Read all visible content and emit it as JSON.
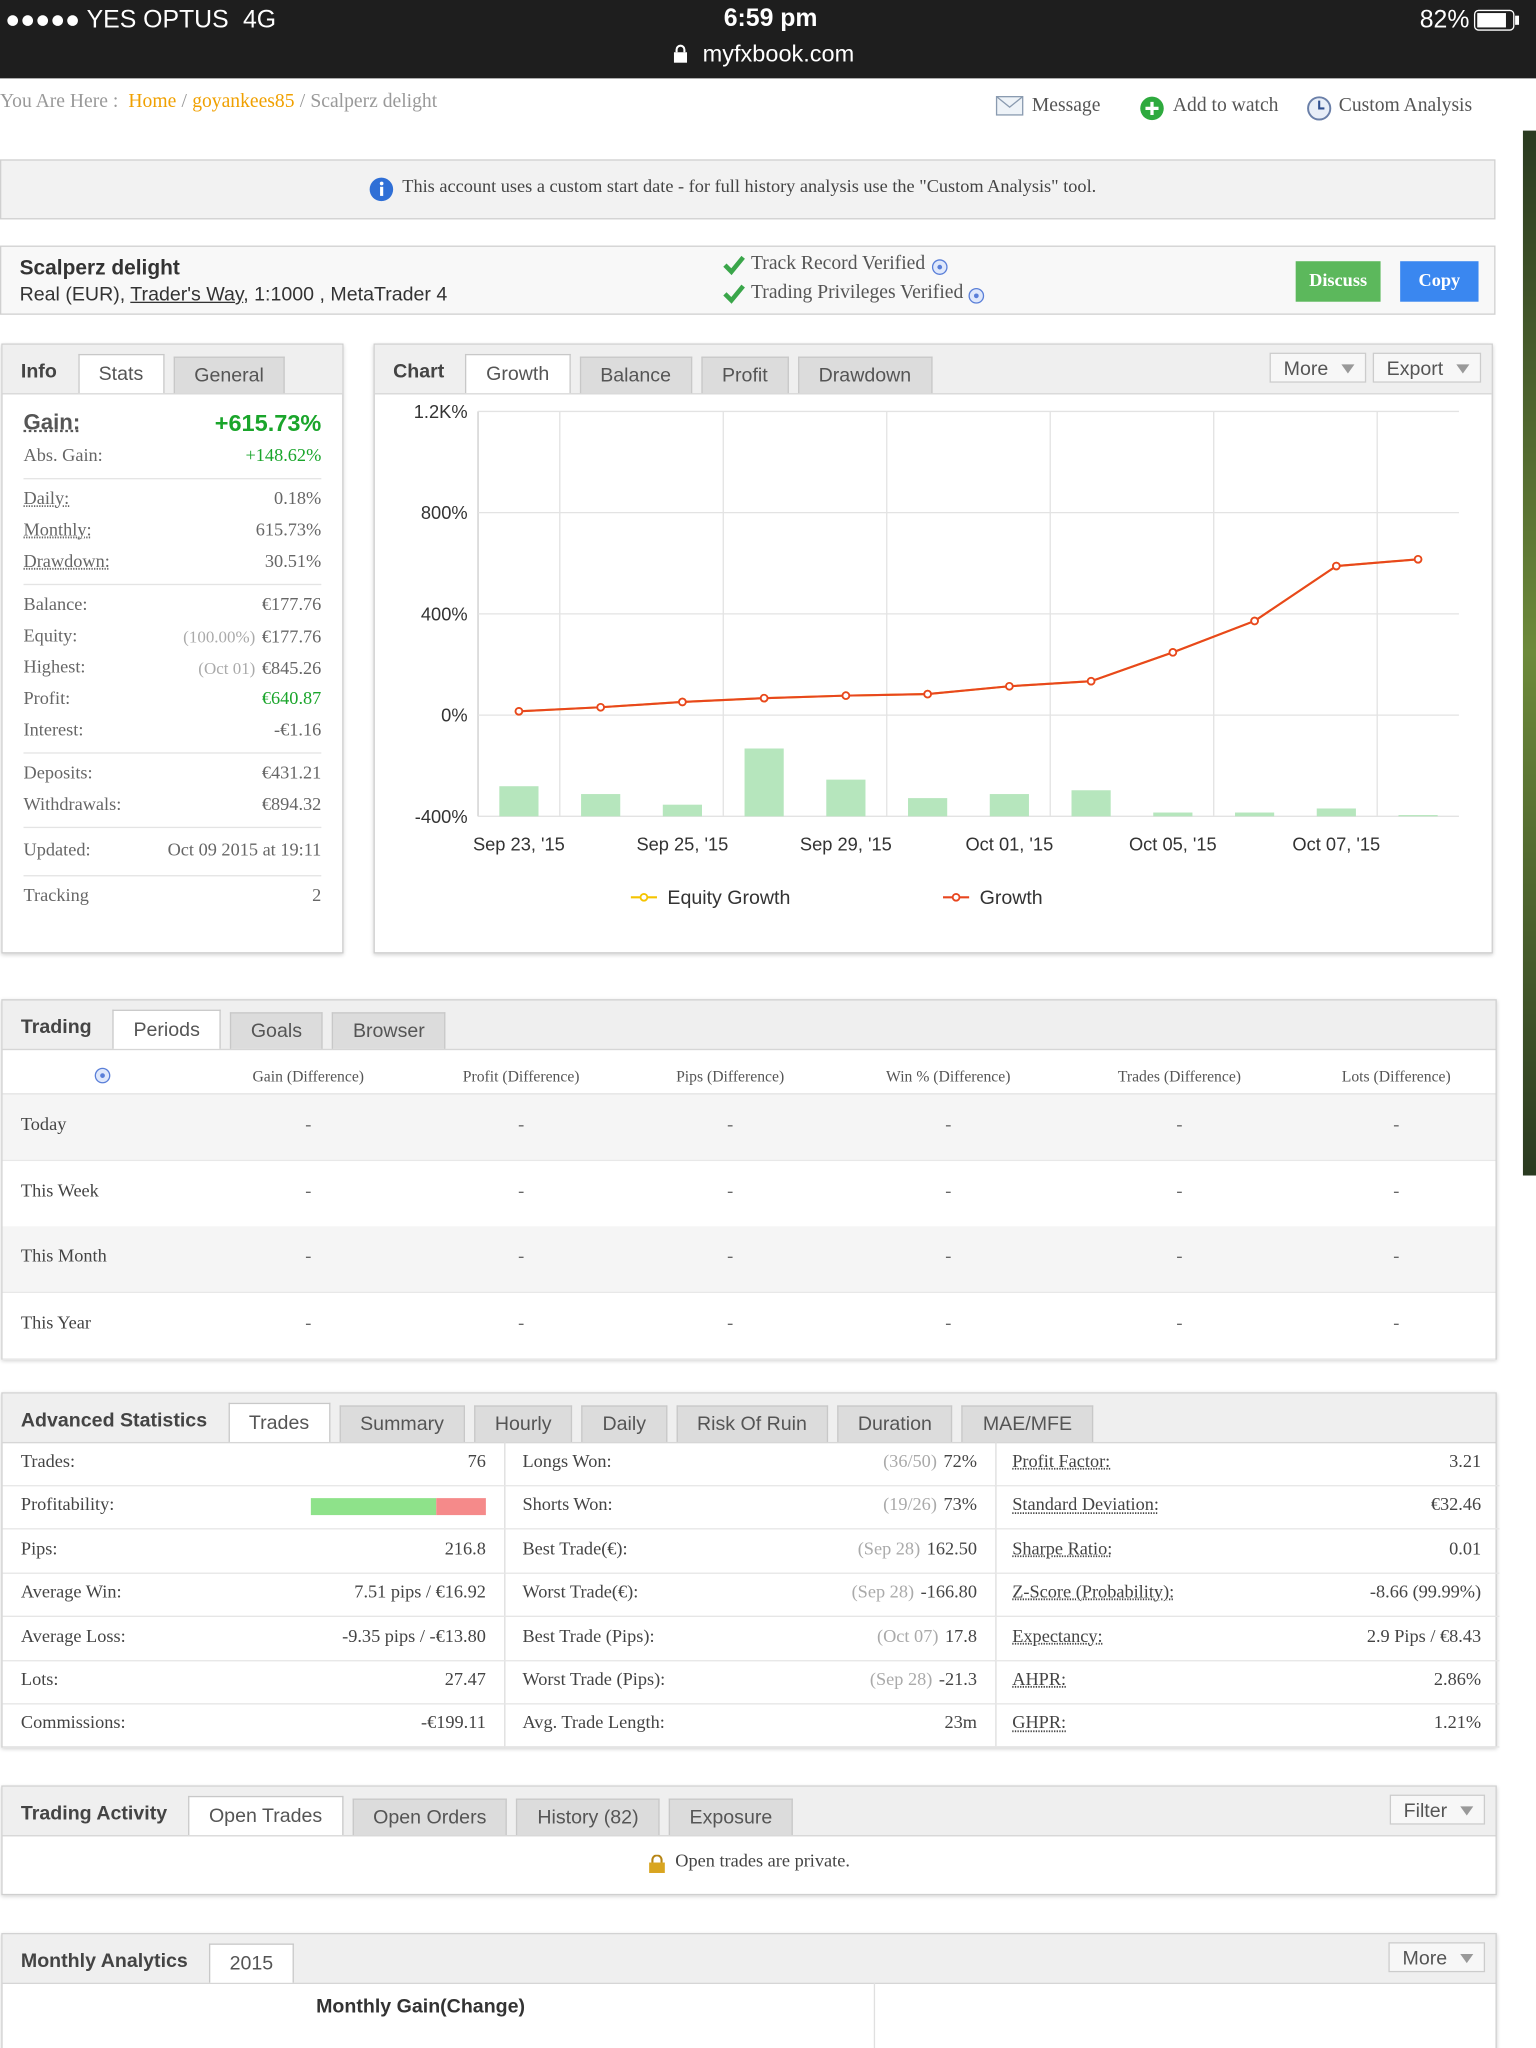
{
  "status_bar": {
    "carrier": "●●●●● YES OPTUS",
    "network": "4G",
    "time": "6:59 pm",
    "url": "myfxbook.com",
    "battery": "82%"
  },
  "breadcrumb": {
    "prefix": "You Are Here :",
    "separator": "/",
    "items": [
      "Home",
      "goyankees85",
      "Scalperz delight"
    ]
  },
  "actions": [
    "Message",
    "Add to watch",
    "Custom Analysis"
  ],
  "notice": "This account uses a custom start date - for full history analysis use the \"Custom Analysis\" tool.",
  "account": {
    "name": "Scalperz delight",
    "type": "Real (EUR),",
    "broker": "Trader's Way",
    "details": ", 1:1000 , MetaTrader 4",
    "verified": [
      "Track Record Verified",
      "Trading Privileges Verified"
    ],
    "buttons": [
      "Discuss",
      "Copy"
    ]
  },
  "info": {
    "tabs": [
      "Info",
      "Stats",
      "General"
    ],
    "gain": {
      "label": "Gain:",
      "value": "+615.73%"
    },
    "groups": [
      [
        {
          "label": "Abs. Gain:",
          "value": "+148.62%",
          "color": "#1aa52b"
        }
      ],
      [
        {
          "label": "Daily:",
          "value": "0.18%"
        },
        {
          "label": "Monthly:",
          "value": "615.73%"
        },
        {
          "label": "Drawdown:",
          "value": "30.51%"
        }
      ],
      [
        {
          "label": "Balance:",
          "value": "€177.76"
        },
        {
          "label": "Equity:",
          "note": "(100.00%)",
          "value": "€177.76"
        },
        {
          "label": "Highest:",
          "note": "(Oct 01)",
          "value": "€845.26"
        },
        {
          "label": "Profit:",
          "value": "€640.87",
          "color": "#1aa52b"
        },
        {
          "label": "Interest:",
          "value": "-€1.16"
        }
      ],
      [
        {
          "label": "Deposits:",
          "value": "€431.21"
        },
        {
          "label": "Withdrawals:",
          "value": "€894.32"
        }
      ],
      [
        {
          "label": "Updated:",
          "value": "Oct 09 2015 at 19:11"
        }
      ],
      [
        {
          "label": "Tracking",
          "value": "2"
        }
      ]
    ]
  },
  "chart_panel": {
    "tabs": [
      "Chart",
      "Growth",
      "Balance",
      "Profit",
      "Drawdown"
    ],
    "menus": [
      "More",
      "Export"
    ]
  },
  "chart_data": {
    "type": "line",
    "categories": [
      "Sep 23, '15",
      null,
      "Sep 25, '15",
      null,
      "Sep 29, '15",
      null,
      "Oct 01, '15",
      null,
      "Oct 05, '15",
      null,
      "Oct 07, '15",
      null
    ],
    "series": [
      {
        "name": "Equity Growth",
        "color": "#f5c400",
        "values": [
          15,
          31,
          52,
          67,
          77,
          83,
          114,
          134,
          248,
          372,
          589,
          615.73
        ]
      },
      {
        "name": "Growth",
        "color": "#e8461f",
        "values": [
          15,
          31,
          52,
          67,
          77,
          83,
          114,
          134,
          248,
          372,
          589,
          615.73
        ]
      }
    ],
    "bars": {
      "color": "#b6e6bd",
      "values": [
        -281,
        -312,
        -354,
        -132,
        -255,
        -328,
        -312,
        -297,
        -385,
        -385,
        -369,
        -395
      ]
    },
    "ylim": [
      -400,
      1200
    ],
    "yticks": [
      {
        "value": -400,
        "label": "-400%"
      },
      {
        "value": 0,
        "label": "0%"
      },
      {
        "value": 400,
        "label": "400%"
      },
      {
        "value": 800,
        "label": "800%"
      },
      {
        "value": 1200,
        "label": "1.2K%"
      }
    ],
    "grid": true
  },
  "trading": {
    "tabs": [
      "Trading",
      "Periods",
      "Goals",
      "Browser"
    ],
    "columns": [
      "Gain (Difference)",
      "Profit (Difference)",
      "Pips (Difference)",
      "Win % (Difference)",
      "Trades (Difference)",
      "Lots (Difference)"
    ],
    "rows": [
      [
        "Today",
        "-",
        "-",
        "-",
        "-",
        "-",
        "-"
      ],
      [
        "This Week",
        "-",
        "-",
        "-",
        "-",
        "-",
        "-"
      ],
      [
        "This Month",
        "-",
        "-",
        "-",
        "-",
        "-",
        "-"
      ],
      [
        "This Year",
        "-",
        "-",
        "-",
        "-",
        "-",
        "-"
      ]
    ]
  },
  "advanced": {
    "tabs": [
      "Advanced Statistics",
      "Trades",
      "Summary",
      "Hourly",
      "Daily",
      "Risk Of Ruin",
      "Duration",
      "MAE/MFE"
    ],
    "columns": [
      [
        {
          "label": "Trades:",
          "value": "76"
        },
        {
          "label": "Profitability:",
          "bar": {
            "colors": [
              "#8ee28a",
              "#f58a8a"
            ]
          }
        },
        {
          "label": "Pips:",
          "value": "216.8"
        },
        {
          "label": "Average Win:",
          "value": "7.51 pips / €16.92"
        },
        {
          "label": "Average Loss:",
          "value": "-9.35 pips / -€13.80"
        },
        {
          "label": "Lots:",
          "value": "27.47"
        },
        {
          "label": "Commissions:",
          "value": "-€199.11"
        }
      ],
      [
        {
          "label": "Longs Won:",
          "note": "(36/50)",
          "value": "72%"
        },
        {
          "label": "Shorts Won:",
          "note": "(19/26)",
          "value": "73%"
        },
        {
          "label": "Best Trade(€):",
          "note": "(Sep 28)",
          "value": "162.50"
        },
        {
          "label": "Worst Trade(€):",
          "note": "(Sep 28)",
          "value": "-166.80"
        },
        {
          "label": "Best Trade (Pips):",
          "note": "(Oct 07)",
          "value": "17.8"
        },
        {
          "label": "Worst Trade (Pips):",
          "note": "(Sep 28)",
          "value": "-21.3"
        },
        {
          "label": "Avg. Trade Length:",
          "value": "23m"
        }
      ],
      [
        {
          "label": "Profit Factor:",
          "value": "3.21"
        },
        {
          "label": "Standard Deviation:",
          "value": "€32.46"
        },
        {
          "label": "Sharpe Ratio:",
          "value": "0.01"
        },
        {
          "label": "Z-Score (Probability):",
          "value": "-8.66 (99.99%)"
        },
        {
          "label": "Expectancy:",
          "value": "2.9 Pips / €8.43"
        },
        {
          "label": "AHPR:",
          "value": "2.86%"
        },
        {
          "label": "GHPR:",
          "value": "1.21%"
        }
      ]
    ]
  },
  "activity": {
    "tabs": [
      "Trading Activity",
      "Open Trades",
      "Open Orders",
      "History (82)",
      "Exposure"
    ],
    "menu": "Filter",
    "message": "Open trades are private."
  },
  "monthly": {
    "tabs": [
      "Monthly Analytics",
      "2015"
    ],
    "menu": "More",
    "subtitle": "Monthly Gain(Change)"
  }
}
